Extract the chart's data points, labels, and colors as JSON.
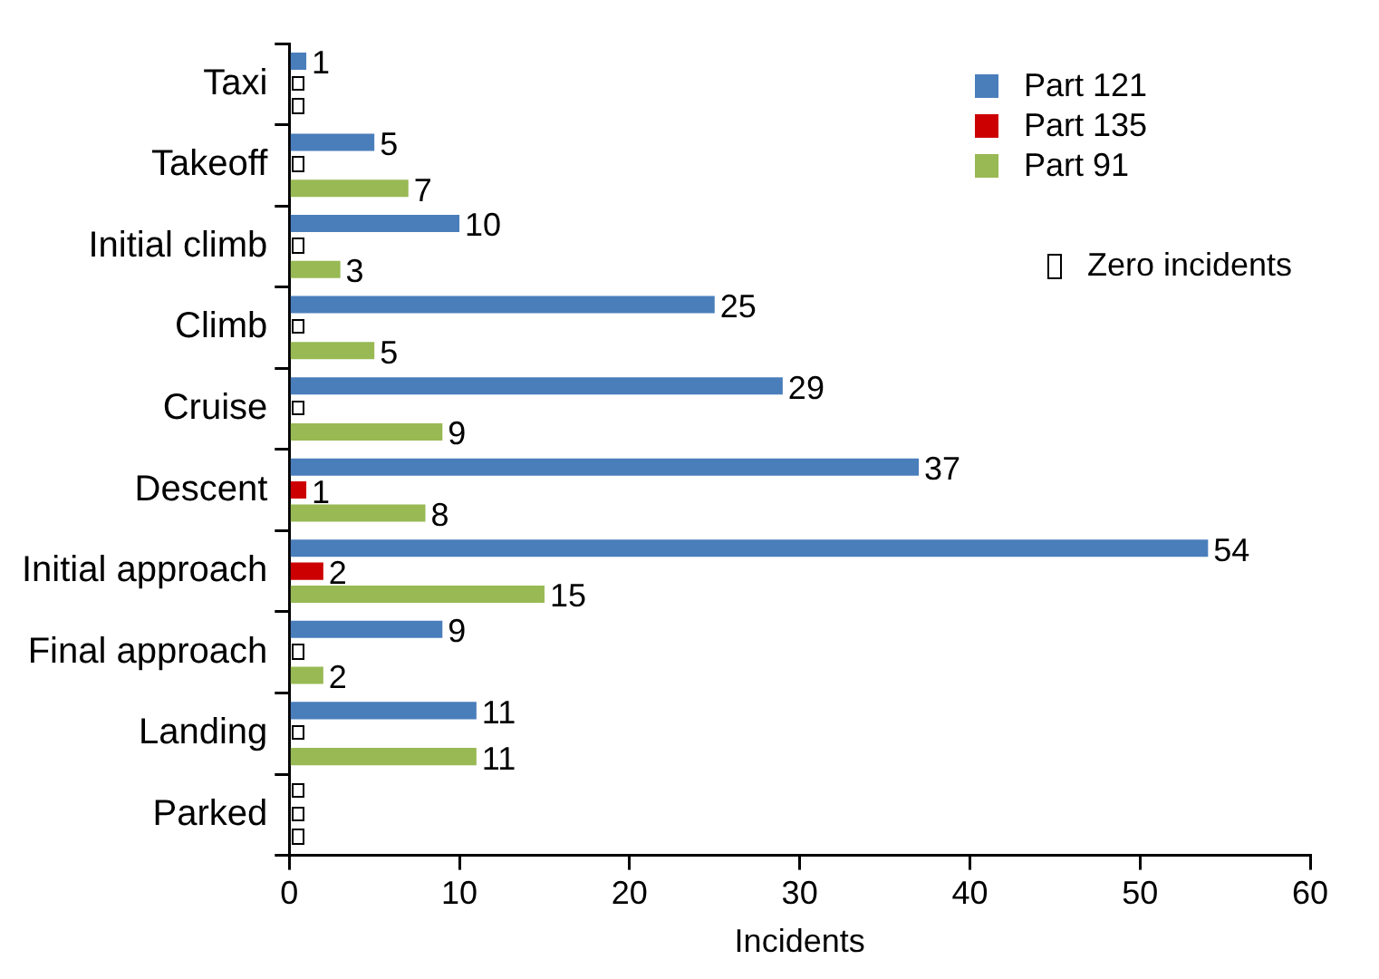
{
  "chart_data": {
    "type": "bar",
    "orientation": "horizontal",
    "xlabel": "Incidents",
    "categories": [
      "Taxi",
      "Takeoff",
      "Initial climb",
      "Climb",
      "Cruise",
      "Descent",
      "Initial approach",
      "Final approach",
      "Landing",
      "Parked"
    ],
    "series": [
      {
        "name": "Part 121",
        "color": "#4a7ebb",
        "values": [
          1,
          5,
          10,
          25,
          29,
          37,
          54,
          9,
          11,
          0
        ],
        "value_labels": [
          "1",
          "5",
          "10",
          "25",
          "29",
          "37",
          "54",
          "9",
          "11",
          null
        ]
      },
      {
        "name": "Part 135",
        "color": "#cc0000",
        "values": [
          0,
          0,
          0,
          0,
          0,
          1,
          2,
          0,
          0,
          0
        ],
        "value_labels": [
          null,
          null,
          null,
          null,
          null,
          "1",
          "2",
          null,
          null,
          null
        ]
      },
      {
        "name": "Part 91",
        "color": "#98b954",
        "values": [
          0,
          7,
          3,
          5,
          9,
          8,
          15,
          2,
          11,
          0
        ],
        "value_labels": [
          null,
          "7",
          "3",
          "5",
          "9",
          "8",
          "15",
          "2",
          "11",
          null
        ]
      }
    ],
    "xlim": [
      0,
      60
    ],
    "xticks": [
      0,
      10,
      20,
      30,
      40,
      50,
      60
    ],
    "grid": false,
    "legend": "top right",
    "annotations": [
      "Zero incidents"
    ]
  }
}
